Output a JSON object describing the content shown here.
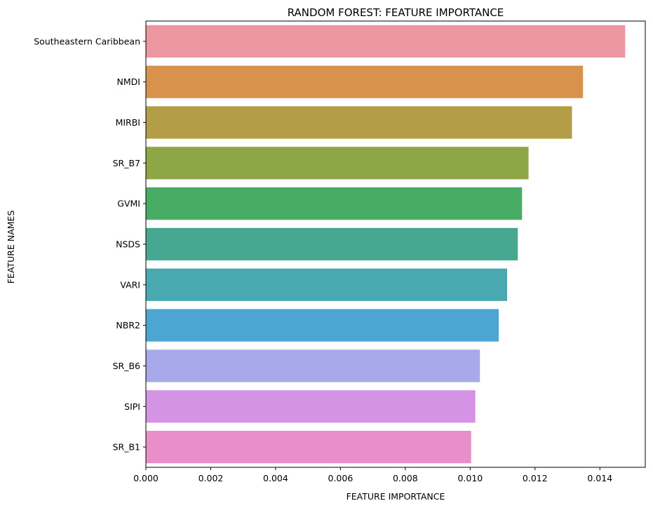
{
  "chart_data": {
    "type": "bar",
    "orientation": "horizontal",
    "title": "RANDOM FOREST: FEATURE IMPORTANCE",
    "xlabel": "FEATURE IMPORTANCE",
    "ylabel": "FEATURE NAMES",
    "xlim": [
      0,
      0.0154
    ],
    "xticks": [
      "0.000",
      "0.002",
      "0.004",
      "0.006",
      "0.008",
      "0.010",
      "0.012",
      "0.014"
    ],
    "xtick_values": [
      0,
      0.002,
      0.004,
      0.006,
      0.008,
      0.01,
      0.012,
      0.014
    ],
    "grid": false,
    "legend": "none",
    "categories": [
      "Southeastern Caribbean",
      "NMDI",
      "MIRBI",
      "SR_B7",
      "GVMI",
      "NSDS",
      "VARI",
      "NBR2",
      "SR_B6",
      "SIPI",
      "SR_B1"
    ],
    "values": [
      0.01478,
      0.01348,
      0.01314,
      0.0118,
      0.0116,
      0.01147,
      0.01114,
      0.01088,
      0.0103,
      0.01016,
      0.01003
    ],
    "colors": [
      "#eb96a1",
      "#d9924c",
      "#b39d47",
      "#8fa647",
      "#48ac64",
      "#46a891",
      "#4aa8b0",
      "#4da6d2",
      "#a7a9ea",
      "#d593e5",
      "#e88ec8"
    ]
  }
}
